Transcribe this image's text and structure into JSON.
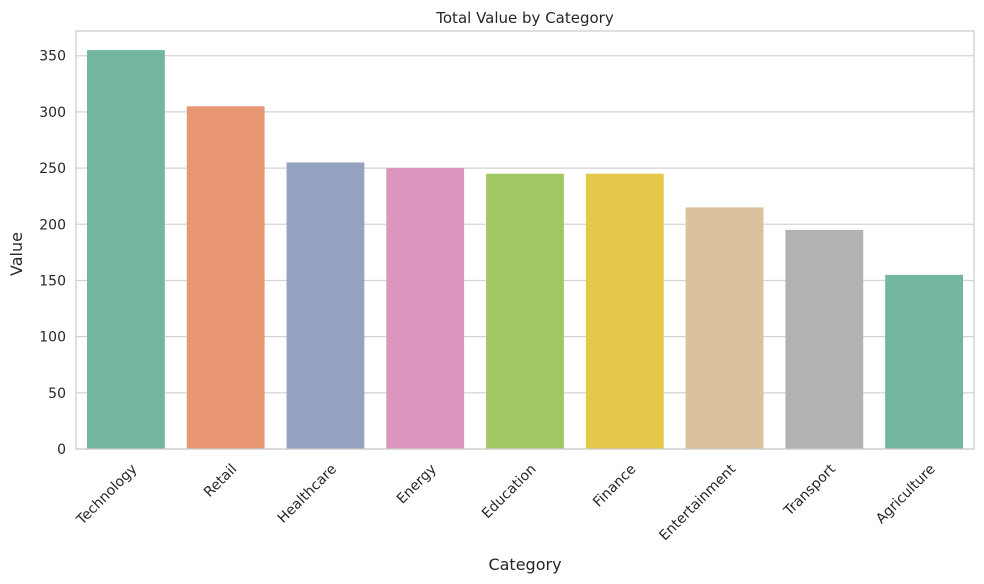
{
  "chart_data": {
    "type": "bar",
    "title": "Total Value by Category",
    "xlabel": "Category",
    "ylabel": "Value",
    "categories": [
      "Technology",
      "Retail",
      "Healthcare",
      "Energy",
      "Education",
      "Finance",
      "Entertainment",
      "Transport",
      "Agriculture"
    ],
    "values": [
      355,
      305,
      255,
      250,
      245,
      245,
      215,
      195,
      155
    ],
    "colors": [
      "#72b6a1",
      "#e99675",
      "#95a3c3",
      "#db96c0",
      "#a2c865",
      "#e3c84a",
      "#dbc19c",
      "#b2b2b2",
      "#72b6a1"
    ],
    "ylim": [
      0,
      372
    ],
    "yticks": [
      0,
      50,
      100,
      150,
      200,
      250,
      300,
      350
    ],
    "grid": "horizontal",
    "xtick_rotation": 45
  }
}
